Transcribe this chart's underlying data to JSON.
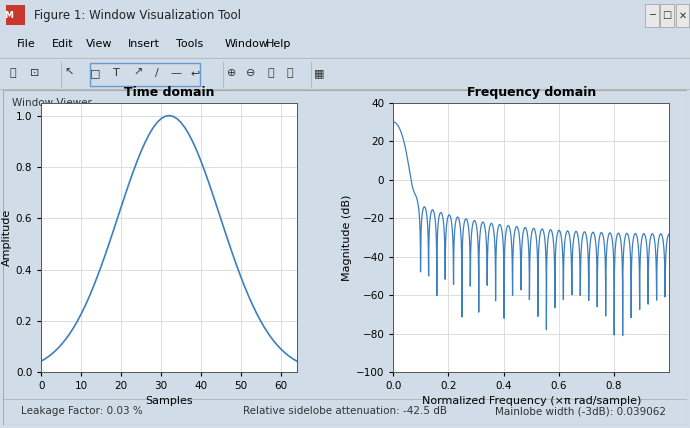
{
  "title_bar": "Figure 1: Window Visualization Tool",
  "menu_items": [
    "File",
    "Edit",
    "View",
    "Insert",
    "Tools",
    "Window",
    "Help"
  ],
  "panel_label": "Window Viewer",
  "time_domain": {
    "title": "Time domain",
    "xlabel": "Samples",
    "ylabel": "Amplitude",
    "xlim": [
      0,
      64
    ],
    "ylim": [
      0,
      1.05
    ],
    "xticks": [
      0,
      10,
      20,
      30,
      40,
      50,
      60
    ],
    "yticks": [
      0,
      0.2,
      0.4,
      0.6,
      0.8,
      1.0
    ],
    "n_points": 65,
    "line_color": "#3c7fbe"
  },
  "freq_domain": {
    "title": "Frequency domain",
    "xlabel": "Normalized Frequency (×π rad/sample)",
    "ylabel": "Magnitude (dB)",
    "xlim": [
      0,
      1
    ],
    "ylim": [
      -100,
      40
    ],
    "xticks": [
      0,
      0.2,
      0.4,
      0.6,
      0.8
    ],
    "yticks": [
      -100,
      -80,
      -60,
      -40,
      -20,
      0,
      20,
      40
    ],
    "line_color": "#3c7fbe"
  },
  "bottom_text": [
    "Leakage Factor: 0.03 %",
    "Relative sidelobe attenuation: -42.5 dB",
    "Mainlobe width (-3dB): 0.039062"
  ],
  "titlebar_bg": "#b8cde0",
  "titlebar_text": "#333333",
  "menubar_bg": "#f0f0f0",
  "toolbar_bg": "#f0f0f0",
  "panel_bg": "#e8eef4",
  "axes_bg": "#ffffff",
  "grid_color": "#d8d8d8",
  "figure_bg": "#d0dce8"
}
